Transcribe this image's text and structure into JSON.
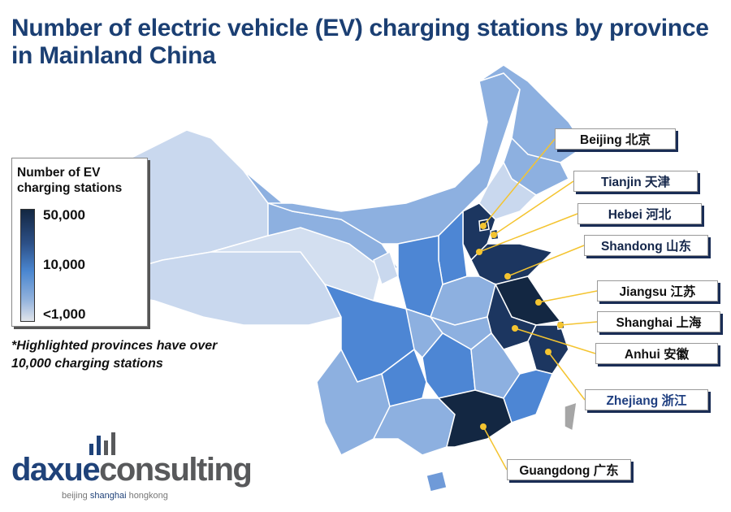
{
  "title": "Number of electric vehicle (EV) charging stations by province in Mainland China",
  "legend": {
    "title": "Number of EV charging stations",
    "ticks": [
      "50,000",
      "10,000",
      "<1,000"
    ],
    "colors": {
      "high": "#132742",
      "mid": "#4a86d0",
      "low": "#e0e4ea"
    }
  },
  "note": "*Highlighted provinces have over 10,000 charging stations",
  "highlighted_provinces": [
    {
      "label": "Beijing 北京"
    },
    {
      "label": "Tianjin 天津"
    },
    {
      "label": "Hebei 河北"
    },
    {
      "label": "Shandong 山东"
    },
    {
      "label": "Jiangsu 江苏"
    },
    {
      "label": "Shanghai 上海"
    },
    {
      "label": "Anhui 安徽"
    },
    {
      "label": "Zhejiang 浙江"
    },
    {
      "label": "Guangdong 广东"
    }
  ],
  "leader_line_color": "#f4c430",
  "logo": {
    "part1": "daxue",
    "part2": "consulting",
    "sub1": "beijing ",
    "sub2": "shanghai",
    "sub3": " hongkong"
  }
}
